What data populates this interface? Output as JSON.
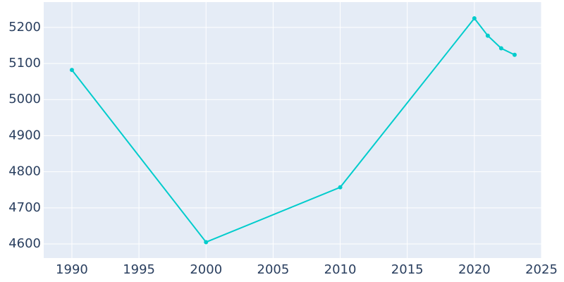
{
  "chart_data": {
    "type": "line",
    "x": [
      1990,
      2000,
      2010,
      2020,
      2021,
      2022,
      2023
    ],
    "series": [
      {
        "color": "#00cccc",
        "values": [
          5082,
          4605,
          4757,
          5225,
          5177,
          5142,
          5124
        ]
      }
    ],
    "xlim": [
      1987.9,
      2025
    ],
    "xticks": [
      1990,
      1995,
      2000,
      2005,
      2010,
      2015,
      2020,
      2025
    ],
    "ylim": [
      4561,
      5270
    ],
    "yticks": [
      4600,
      4700,
      4800,
      4900,
      5000,
      5100,
      5200
    ],
    "grid": true,
    "background": "#e5ecf6"
  }
}
